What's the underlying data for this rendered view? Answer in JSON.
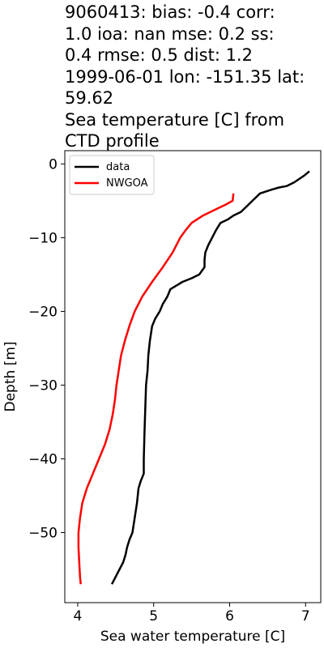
{
  "title": {
    "lines": [
      "9060413: bias: -0.4  corr:",
      "1.0  ioa: nan  mse: 0.2  ss:",
      "0.4  rmse: 0.5  dist: 1.2",
      "1999-06-01 lon: -151.35 lat:",
      "59.62",
      "Sea temperature [C] from",
      "CTD profile"
    ]
  },
  "chart_data": {
    "type": "line",
    "title": "9060413: bias: -0.4  corr: 1.0  ioa: nan  mse: 0.2  ss: 0.4  rmse: 0.5  dist: 1.2 1999-06-01 lon: -151.35 lat: 59.62 Sea temperature [C] from CTD profile",
    "xlabel": "Sea water temperature [C]",
    "ylabel": "Depth [m]",
    "xlim": [
      3.83,
      7.2
    ],
    "ylim": [
      -59.5,
      1.8
    ],
    "xticks": [
      4,
      5,
      6,
      7
    ],
    "xtick_labels": [
      "4",
      "5",
      "6",
      "7"
    ],
    "yticks": [
      0,
      -10,
      -20,
      -30,
      -40,
      -50
    ],
    "ytick_labels": [
      "0",
      "−10",
      "−20",
      "−30",
      "−40",
      "−50"
    ],
    "grid": false,
    "legend_position": "upper left",
    "series": [
      {
        "name": "data",
        "color": "#000000",
        "points": [
          [
            7.05,
            -1
          ],
          [
            6.98,
            -1.6
          ],
          [
            6.85,
            -2.5
          ],
          [
            6.75,
            -3
          ],
          [
            6.65,
            -3.2
          ],
          [
            6.55,
            -3.5
          ],
          [
            6.4,
            -4
          ],
          [
            6.3,
            -5
          ],
          [
            6.25,
            -5.5
          ],
          [
            6.15,
            -6.5
          ],
          [
            6.05,
            -7
          ],
          [
            5.98,
            -7.5
          ],
          [
            5.88,
            -8
          ],
          [
            5.82,
            -9
          ],
          [
            5.77,
            -10
          ],
          [
            5.72,
            -11
          ],
          [
            5.68,
            -12
          ],
          [
            5.67,
            -13
          ],
          [
            5.67,
            -14
          ],
          [
            5.6,
            -15
          ],
          [
            5.5,
            -15.5
          ],
          [
            5.38,
            -16
          ],
          [
            5.3,
            -16.5
          ],
          [
            5.22,
            -17
          ],
          [
            5.18,
            -18
          ],
          [
            5.12,
            -19
          ],
          [
            5.08,
            -20
          ],
          [
            5.02,
            -21
          ],
          [
            4.98,
            -22
          ],
          [
            4.95,
            -24
          ],
          [
            4.93,
            -26
          ],
          [
            4.92,
            -28
          ],
          [
            4.9,
            -30
          ],
          [
            4.89,
            -33
          ],
          [
            4.88,
            -36
          ],
          [
            4.87,
            -40
          ],
          [
            4.87,
            -42
          ],
          [
            4.83,
            -43
          ],
          [
            4.8,
            -44
          ],
          [
            4.78,
            -46
          ],
          [
            4.75,
            -48
          ],
          [
            4.72,
            -50
          ],
          [
            4.68,
            -51
          ],
          [
            4.65,
            -52
          ],
          [
            4.63,
            -53
          ],
          [
            4.6,
            -54
          ],
          [
            4.55,
            -55
          ],
          [
            4.5,
            -56
          ],
          [
            4.45,
            -57
          ]
        ]
      },
      {
        "name": "NWGOA",
        "color": "#ff0000",
        "points": [
          [
            6.05,
            -4
          ],
          [
            6.04,
            -5
          ],
          [
            5.95,
            -5.5
          ],
          [
            5.85,
            -6
          ],
          [
            5.65,
            -7
          ],
          [
            5.5,
            -8
          ],
          [
            5.42,
            -9
          ],
          [
            5.35,
            -10
          ],
          [
            5.25,
            -12
          ],
          [
            5.12,
            -14
          ],
          [
            4.98,
            -16
          ],
          [
            4.85,
            -18
          ],
          [
            4.75,
            -20
          ],
          [
            4.68,
            -22
          ],
          [
            4.62,
            -24
          ],
          [
            4.57,
            -26
          ],
          [
            4.54,
            -28
          ],
          [
            4.51,
            -30
          ],
          [
            4.49,
            -32
          ],
          [
            4.46,
            -34
          ],
          [
            4.42,
            -36
          ],
          [
            4.36,
            -38
          ],
          [
            4.28,
            -40
          ],
          [
            4.2,
            -42
          ],
          [
            4.12,
            -44
          ],
          [
            4.06,
            -46
          ],
          [
            4.03,
            -48
          ],
          [
            4.01,
            -50
          ],
          [
            4.01,
            -52
          ],
          [
            4.02,
            -54
          ],
          [
            4.03,
            -56
          ],
          [
            4.04,
            -57
          ]
        ]
      }
    ]
  }
}
